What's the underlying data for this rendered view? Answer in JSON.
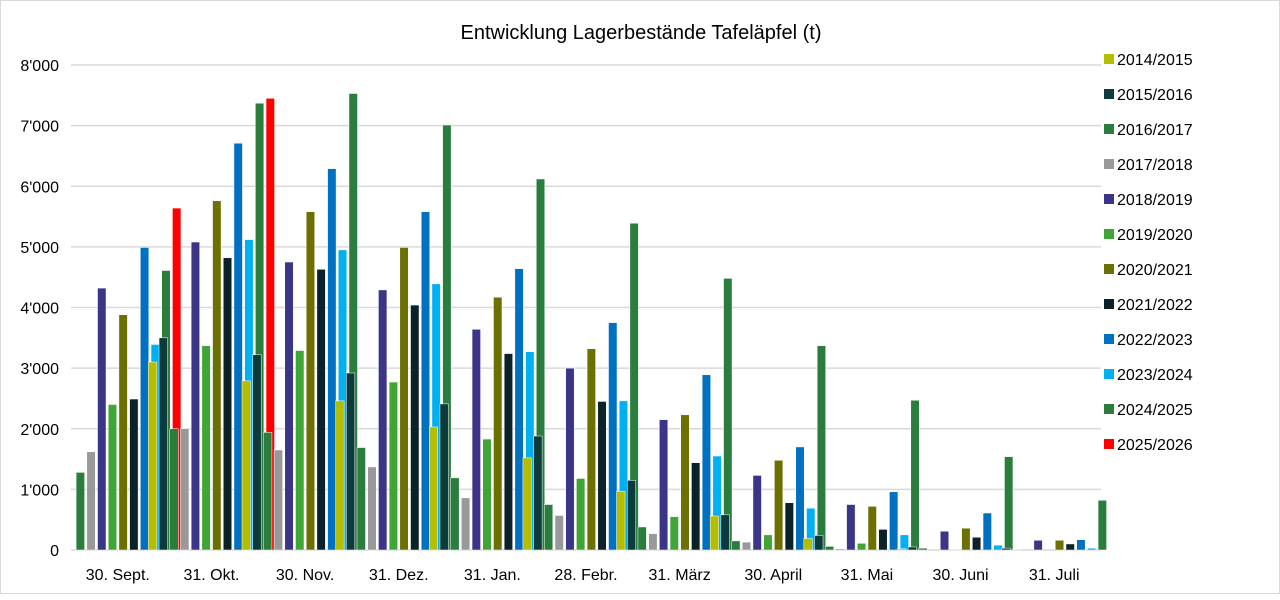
{
  "chart_data": {
    "type": "bar",
    "title": "Entwicklung Lagerbestände Tafeläpfel (t)",
    "xlabel": "",
    "ylabel": "",
    "ylim": [
      0,
      8000
    ],
    "yticks": [
      0,
      1000,
      2000,
      3000,
      4000,
      5000,
      6000,
      7000,
      8000
    ],
    "ytick_labels": [
      "0",
      "1'000",
      "2'000",
      "3'000",
      "4'000",
      "5'000",
      "6'000",
      "7'000",
      "8'000"
    ],
    "grid": true,
    "legend": "right",
    "categories": [
      "30. Sept.",
      "31. Okt.",
      "30. Nov.",
      "31. Dez.",
      "31. Jan.",
      "28. Febr.",
      "31. März",
      "30. April",
      "31. Mai",
      "30. Juni",
      "31. Juli"
    ],
    "series": [
      {
        "name": "2014/2015",
        "color": "#b5bd00",
        "values": [
          0,
          3100,
          2790,
          2460,
          2030,
          1520,
          970,
          560,
          190,
          20,
          0
        ]
      },
      {
        "name": "2015/2016",
        "color": "#0d3b3b",
        "values": [
          0,
          3500,
          3220,
          2920,
          2410,
          1880,
          1150,
          580,
          240,
          50,
          30
        ]
      },
      {
        "name": "2016/2017",
        "color": "#2a7d3c",
        "values": [
          1280,
          2000,
          1940,
          1690,
          1190,
          750,
          380,
          150,
          60,
          30,
          10
        ]
      },
      {
        "name": "2017/2018",
        "color": "#999999",
        "values": [
          1620,
          2000,
          1650,
          1370,
          860,
          570,
          270,
          130,
          20,
          0,
          0
        ]
      },
      {
        "name": "2018/2019",
        "color": "#3b3588",
        "values": [
          4320,
          5080,
          4750,
          4290,
          3640,
          3000,
          2150,
          1230,
          750,
          310,
          160
        ]
      },
      {
        "name": "2019/2020",
        "color": "#3fa535",
        "values": [
          2400,
          3370,
          3290,
          2770,
          1830,
          1180,
          550,
          250,
          110,
          10,
          0
        ]
      },
      {
        "name": "2020/2021",
        "color": "#6b7000",
        "values": [
          3880,
          5760,
          5580,
          4990,
          4170,
          3320,
          2230,
          1480,
          720,
          360,
          160
        ]
      },
      {
        "name": "2021/2022",
        "color": "#0b2228",
        "values": [
          2490,
          4820,
          4630,
          4040,
          3240,
          2450,
          1440,
          780,
          340,
          210,
          100
        ]
      },
      {
        "name": "2022/2023",
        "color": "#0070c0",
        "values": [
          4990,
          6710,
          6290,
          5580,
          4640,
          3750,
          2890,
          1700,
          960,
          610,
          170
        ]
      },
      {
        "name": "2023/2024",
        "color": "#00b0f0",
        "values": [
          3390,
          5120,
          4950,
          4390,
          3270,
          2460,
          1550,
          690,
          250,
          80,
          30
        ]
      },
      {
        "name": "2024/2025",
        "color": "#2a7d3c",
        "values": [
          4610,
          7370,
          7530,
          7010,
          6120,
          5390,
          4480,
          3370,
          2470,
          1540,
          820
        ]
      },
      {
        "name": "2025/2026",
        "color": "#ff0000",
        "values": [
          5640,
          7450,
          null,
          null,
          null,
          null,
          null,
          null,
          null,
          null,
          null
        ]
      }
    ]
  }
}
